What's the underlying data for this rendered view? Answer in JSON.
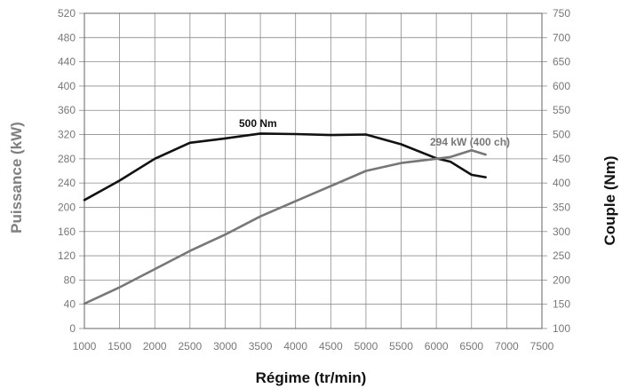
{
  "chart_data": {
    "type": "line",
    "xlabel": "Régime (tr/min)",
    "ylabel_left": "Puissance (kW)",
    "ylabel_right": "Couple (Nm)",
    "x_ticks": [
      1000,
      1500,
      2000,
      2500,
      3000,
      3500,
      4000,
      4500,
      5000,
      5500,
      6000,
      6500,
      7000,
      7500
    ],
    "y_left_ticks": [
      0,
      40,
      80,
      120,
      160,
      200,
      240,
      280,
      320,
      360,
      400,
      440,
      480,
      520
    ],
    "y_right_ticks": [
      100,
      150,
      200,
      250,
      300,
      350,
      400,
      450,
      500,
      550,
      600,
      650,
      700,
      750
    ],
    "xlim": [
      1000,
      7500
    ],
    "ylim_left": [
      0,
      520
    ],
    "ylim_right": [
      100,
      750
    ],
    "grid": true,
    "series": [
      {
        "axis": "right",
        "color": "#111111",
        "x": [
          1000,
          1500,
          2000,
          2500,
          3000,
          3500,
          4000,
          4500,
          5000,
          5500,
          6000,
          6200,
          6500,
          6700
        ],
        "y": [
          365,
          405,
          450,
          483,
          492,
          502,
          501,
          499,
          500,
          480,
          451,
          444,
          417,
          412
        ]
      },
      {
        "axis": "left",
        "color": "#777777",
        "x": [
          1000,
          1500,
          2000,
          2500,
          3000,
          3500,
          4000,
          4500,
          5000,
          5500,
          6000,
          6200,
          6500,
          6700
        ],
        "y": [
          41,
          68,
          98,
          128,
          155,
          185,
          210,
          235,
          260,
          273,
          280,
          283,
          294,
          287
        ]
      }
    ],
    "annotations": [
      {
        "text": "500 Nm",
        "color": "#111111"
      },
      {
        "text": "294 kW (400 ch)",
        "color": "#777777"
      }
    ]
  }
}
